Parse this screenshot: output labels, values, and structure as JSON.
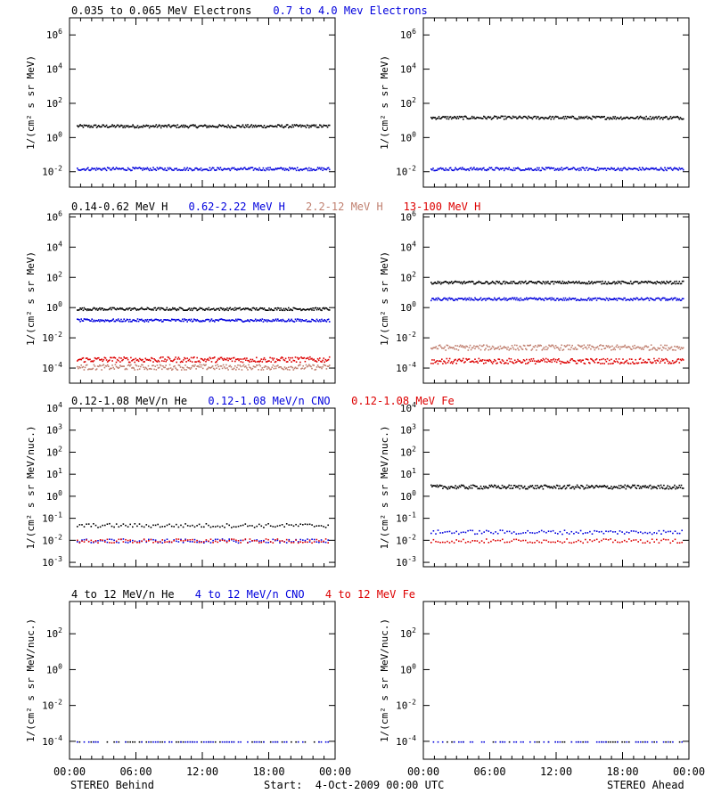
{
  "colors": {
    "black": "#000000",
    "blue": "#0000dd",
    "tan": "#c08070",
    "red": "#dd0000"
  },
  "ylabel_flux": "1/(cm² s sr MeV)",
  "ylabel_nuc": "1/(cm² s sr MeV/nuc.)",
  "x_ticks": [
    "00:00",
    "06:00",
    "12:00",
    "18:00",
    "00:00"
  ],
  "footer": {
    "left": "STEREO Behind",
    "center": "Start:  4-Oct-2009 00:00 UTC",
    "right": "STEREO Ahead"
  },
  "rows": [
    {
      "id": "electrons",
      "titles": [
        {
          "text": "0.035 to 0.065 MeV Electrons",
          "color": "black"
        },
        {
          "text": "0.7 to 4.0 Mev Electrons",
          "color": "blue"
        }
      ],
      "yticks": [
        {
          "base": "10",
          "exp": "6"
        },
        {
          "base": "10",
          "exp": "4"
        },
        {
          "base": "10",
          "exp": "2"
        },
        {
          "base": "10",
          "exp": "0"
        },
        {
          "base": "10",
          "exp": "-2"
        }
      ],
      "ylog": [
        -2.9,
        7
      ]
    },
    {
      "id": "protons",
      "titles": [
        {
          "text": "0.14-0.62 MeV H",
          "color": "black"
        },
        {
          "text": "0.62-2.22 MeV H",
          "color": "blue"
        },
        {
          "text": "2.2-12 MeV H",
          "color": "tan"
        },
        {
          "text": "13-100 MeV H",
          "color": "red"
        }
      ],
      "yticks": [
        {
          "base": "10",
          "exp": "6"
        },
        {
          "base": "10",
          "exp": "4"
        },
        {
          "base": "10",
          "exp": "2"
        },
        {
          "base": "10",
          "exp": "0"
        },
        {
          "base": "10",
          "exp": "-2"
        },
        {
          "base": "10",
          "exp": "-4"
        }
      ],
      "ylog": [
        -5,
        6.2
      ]
    },
    {
      "id": "heavy_low",
      "titles": [
        {
          "text": "0.12-1.08 MeV/n He",
          "color": "black"
        },
        {
          "text": "0.12-1.08 MeV/n CNO",
          "color": "blue"
        },
        {
          "text": "0.12-1.08 MeV Fe",
          "color": "red"
        }
      ],
      "yticks": [
        {
          "base": "10",
          "exp": "4"
        },
        {
          "base": "10",
          "exp": "3"
        },
        {
          "base": "10",
          "exp": "2"
        },
        {
          "base": "10",
          "exp": "1"
        },
        {
          "base": "10",
          "exp": "0"
        },
        {
          "base": "10",
          "exp": "-1"
        },
        {
          "base": "10",
          "exp": "-2"
        },
        {
          "base": "10",
          "exp": "-3"
        }
      ],
      "ylog": [
        -3.2,
        4
      ]
    },
    {
      "id": "heavy_high",
      "titles": [
        {
          "text": "4 to 12 MeV/n He",
          "color": "black"
        },
        {
          "text": "4 to 12 MeV/n CNO",
          "color": "blue"
        },
        {
          "text": "4 to 12 MeV Fe",
          "color": "red"
        }
      ],
      "yticks": [
        {
          "base": "10",
          "exp": "2"
        },
        {
          "base": "10",
          "exp": "0"
        },
        {
          "base": "10",
          "exp": "-2"
        },
        {
          "base": "10",
          "exp": "-4"
        }
      ],
      "ylog": [
        -5,
        3.8
      ]
    }
  ],
  "chart_data": [
    {
      "type": "scatter",
      "panel": "STEREO Behind electrons",
      "x_range_hours": [
        0,
        24
      ],
      "y_scale": "log",
      "series": [
        {
          "name": "0.035 to 0.065 MeV Electrons",
          "color": "black",
          "log10_level": 0.7
        },
        {
          "name": "0.7 to 4.0 Mev Electrons",
          "color": "blue",
          "log10_level": -1.8
        }
      ]
    },
    {
      "type": "scatter",
      "panel": "STEREO Ahead electrons",
      "x_range_hours": [
        0,
        24
      ],
      "y_scale": "log",
      "series": [
        {
          "name": "0.035 to 0.065 MeV Electrons",
          "color": "black",
          "log10_level": 1.2
        },
        {
          "name": "0.7 to 4.0 Mev Electrons",
          "color": "blue",
          "log10_level": -1.8
        }
      ]
    },
    {
      "type": "scatter",
      "panel": "STEREO Behind protons",
      "x_range_hours": [
        0,
        24
      ],
      "y_scale": "log",
      "series": [
        {
          "name": "0.14-0.62 MeV H",
          "color": "black",
          "log10_level": -0.05
        },
        {
          "name": "0.62-2.22 MeV H",
          "color": "blue",
          "log10_level": -0.8
        },
        {
          "name": "2.2-12 MeV H",
          "color": "tan",
          "log10_level": -3.9
        },
        {
          "name": "13-100 MeV H",
          "color": "red",
          "log10_level": -3.4
        }
      ]
    },
    {
      "type": "scatter",
      "panel": "STEREO Ahead protons",
      "x_range_hours": [
        0,
        24
      ],
      "y_scale": "log",
      "series": [
        {
          "name": "0.14-0.62 MeV H",
          "color": "black",
          "log10_level": 1.7
        },
        {
          "name": "0.62-2.22 MeV H",
          "color": "blue",
          "log10_level": 0.6
        },
        {
          "name": "2.2-12 MeV H",
          "color": "tan",
          "log10_level": -2.6
        },
        {
          "name": "13-100 MeV H",
          "color": "red",
          "log10_level": -3.5
        }
      ]
    },
    {
      "type": "scatter",
      "panel": "STEREO Behind heavy ions low energy",
      "x_range_hours": [
        0,
        24
      ],
      "y_scale": "log",
      "series": [
        {
          "name": "0.12-1.08 MeV/n He",
          "color": "black",
          "log10_level": -1.3
        },
        {
          "name": "0.12-1.08 MeV/n CNO",
          "color": "blue",
          "log10_level": -2.0
        },
        {
          "name": "0.12-1.08 MeV Fe",
          "color": "red",
          "log10_level": -2.0
        }
      ]
    },
    {
      "type": "scatter",
      "panel": "STEREO Ahead heavy ions low energy",
      "x_range_hours": [
        0,
        24
      ],
      "y_scale": "log",
      "series": [
        {
          "name": "0.12-1.08 MeV/n He",
          "color": "black",
          "log10_level": 0.45
        },
        {
          "name": "0.12-1.08 MeV/n CNO",
          "color": "blue",
          "log10_level": -1.6
        },
        {
          "name": "0.12-1.08 MeV Fe",
          "color": "red",
          "log10_level": -2.0
        }
      ]
    },
    {
      "type": "scatter",
      "panel": "STEREO Behind heavy ions high energy",
      "x_range_hours": [
        0,
        24
      ],
      "y_scale": "log",
      "series": [
        {
          "name": "4 to 12 MeV/n He",
          "color": "black",
          "log10_level": -4.0
        },
        {
          "name": "4 to 12 MeV/n CNO",
          "color": "blue",
          "log10_level": -4.0
        }
      ]
    },
    {
      "type": "scatter",
      "panel": "STEREO Ahead heavy ions high energy",
      "x_range_hours": [
        0,
        24
      ],
      "y_scale": "log",
      "series": [
        {
          "name": "4 to 12 MeV/n He",
          "color": "black",
          "log10_level": -4.0
        },
        {
          "name": "4 to 12 MeV/n CNO",
          "color": "blue",
          "log10_level": -4.0
        }
      ]
    }
  ]
}
